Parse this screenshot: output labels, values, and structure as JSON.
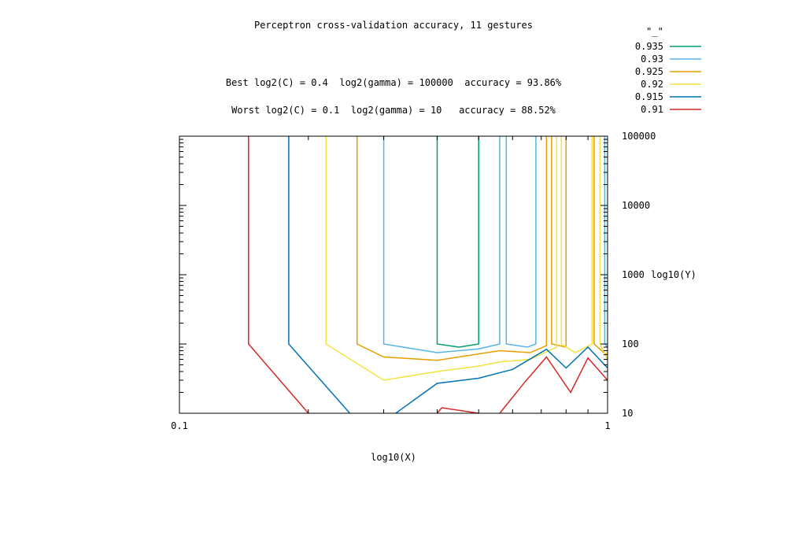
{
  "chart_data": {
    "type": "contour",
    "title": "Perceptron cross-validation accuracy, 11 gestures",
    "subtitle_best": "Best log2(C) = 0.4  log2(gamma) = 100000  accuracy = 93.86%",
    "subtitle_worst": "Worst log2(C) = 0.1  log2(gamma) = 10   accuracy = 88.52%",
    "xlabel": "log10(X)",
    "ylabel": "log10(Y)",
    "x_scale": "log",
    "y_scale": "log",
    "xlim": [
      0.1,
      1
    ],
    "ylim": [
      10,
      100000
    ],
    "x_ticks": [
      "0.1",
      "1"
    ],
    "y_ticks": [
      "10",
      "100",
      "1000",
      "10000",
      "100000"
    ],
    "grid": false,
    "legend_title": "\"_\"",
    "legend_position": "top-right",
    "series": [
      {
        "name": "0.935",
        "color": "#009e73",
        "lines": [
          [
            [
              0.4,
              100000
            ],
            [
              0.4,
              100
            ],
            [
              0.45,
              90
            ],
            [
              0.5,
              100
            ],
            [
              0.5,
              100000
            ]
          ]
        ]
      },
      {
        "name": "0.93",
        "color": "#56b4e9",
        "lines": [
          [
            [
              0.3,
              100000
            ],
            [
              0.3,
              100
            ],
            [
              0.4,
              75
            ],
            [
              0.5,
              85
            ],
            [
              0.56,
              100
            ],
            [
              0.56,
              100000
            ]
          ],
          [
            [
              0.58,
              100000
            ],
            [
              0.58,
              100
            ],
            [
              0.65,
              90
            ],
            [
              0.68,
              100
            ],
            [
              0.68,
              100000
            ]
          ],
          [
            [
              0.985,
              100000
            ],
            [
              0.985,
              10000
            ],
            [
              0.985,
              100
            ],
            [
              1.0,
              90
            ]
          ]
        ]
      },
      {
        "name": "0.925",
        "color": "#e69f00",
        "lines": [
          [
            [
              0.26,
              100000
            ],
            [
              0.26,
              100
            ],
            [
              0.3,
              65
            ],
            [
              0.4,
              58
            ],
            [
              0.5,
              72
            ],
            [
              0.56,
              80
            ],
            [
              0.66,
              75
            ],
            [
              0.72,
              95
            ],
            [
              0.72,
              100000
            ]
          ],
          [
            [
              0.74,
              100000
            ],
            [
              0.74,
              100
            ],
            [
              0.8,
              90
            ],
            [
              0.8,
              100000
            ]
          ],
          [
            [
              0.93,
              100000
            ],
            [
              0.93,
              100
            ],
            [
              0.98,
              75
            ],
            [
              1.0,
              70
            ]
          ]
        ]
      },
      {
        "name": "0.92",
        "color": "#f0e442",
        "lines": [
          [
            [
              0.22,
              100000
            ],
            [
              0.22,
              100
            ],
            [
              0.3,
              30
            ],
            [
              0.4,
              40
            ],
            [
              0.5,
              48
            ],
            [
              0.56,
              55
            ],
            [
              0.66,
              60
            ],
            [
              0.76,
              90
            ],
            [
              0.76,
              100000
            ]
          ],
          [
            [
              0.78,
              100000
            ],
            [
              0.78,
              100
            ],
            [
              0.84,
              75
            ],
            [
              0.92,
              100
            ],
            [
              0.92,
              100000
            ]
          ],
          [
            [
              0.96,
              100000
            ],
            [
              0.96,
              100
            ],
            [
              1.0,
              60
            ]
          ]
        ]
      },
      {
        "name": "0.915",
        "color": "#0072b2",
        "lines": [
          [
            [
              0.18,
              100000
            ],
            [
              0.18,
              100
            ],
            [
              0.25,
              10
            ]
          ],
          [
            [
              0.32,
              10
            ],
            [
              0.4,
              27
            ],
            [
              0.5,
              32
            ],
            [
              0.6,
              43
            ],
            [
              0.72,
              84
            ],
            [
              0.8,
              45
            ],
            [
              0.9,
              90
            ],
            [
              1.0,
              45
            ]
          ]
        ]
      },
      {
        "name": "0.91",
        "color": "#d62728",
        "lines": [
          [
            [
              0.145,
              100000
            ],
            [
              0.145,
              100
            ],
            [
              0.2,
              10
            ]
          ],
          [
            [
              0.4,
              10
            ],
            [
              0.41,
              12
            ],
            [
              0.5,
              10
            ]
          ],
          [
            [
              0.56,
              10
            ],
            [
              0.64,
              28
            ],
            [
              0.72,
              65
            ],
            [
              0.82,
              20
            ],
            [
              0.9,
              63
            ],
            [
              1.0,
              30
            ]
          ]
        ]
      }
    ]
  }
}
